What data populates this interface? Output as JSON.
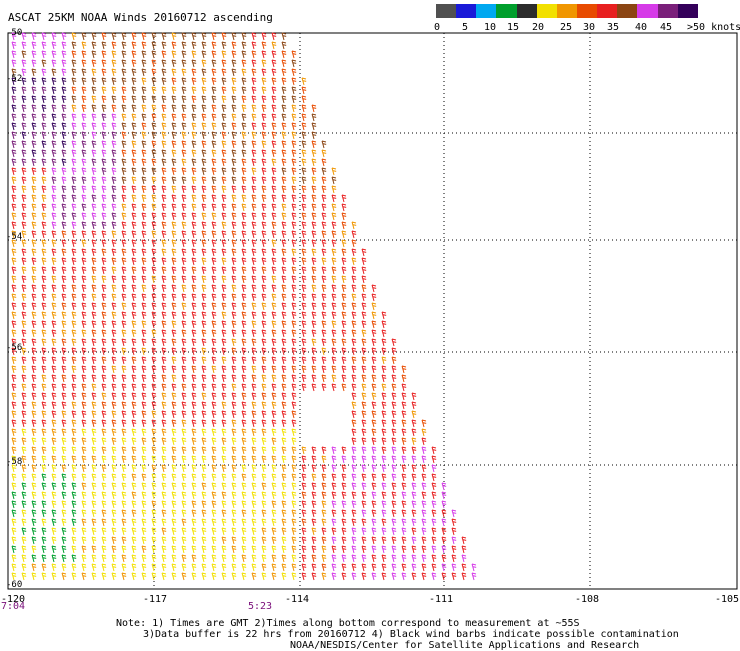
{
  "header": {
    "title": "ASCAT 25KM NOAA Winds 20160712 ascending"
  },
  "legend": {
    "colors": [
      "#505050",
      "#1a1ad8",
      "#00a8f0",
      "#009f2c",
      "#2c2c2c",
      "#f2e000",
      "#f09600",
      "#e84b00",
      "#e82020",
      "#8b4513",
      "#d63be8",
      "#7a1f7a",
      "#34005a"
    ],
    "ticks": [
      "0",
      "5",
      "10",
      "15",
      "20",
      "25",
      "30",
      "35",
      "40",
      "45",
      ">50 knots"
    ]
  },
  "axes": {
    "x_ticks": [
      "-120",
      "-117",
      "-114",
      "-111",
      "-108",
      "-105"
    ],
    "y_ticks": [
      "-50",
      "-52",
      "-54",
      "-56",
      "-58",
      "-60"
    ]
  },
  "times": [
    "7:04",
    "5:23"
  ],
  "notes": [
    "Note: 1) Times are GMT 2)Times along bottom correspond to measurement at ~55S",
    "3)Data buffer is 22 hrs from 20160712 4) Black wind barbs indicate possible contamination",
    "NOAA/NESDIS/Center for Satellite Applications and Research"
  ],
  "chart_data": {
    "type": "map",
    "title": "ASCAT 25KM NOAA Winds 20160712 ascending",
    "legend": {
      "unit": "knots",
      "bins": [
        {
          "label": "0",
          "color": "#505050"
        },
        {
          "label": "5",
          "color": "#00a8f0"
        },
        {
          "label": "10",
          "color": "#009f2c"
        },
        {
          "label": "15",
          "color": "#2c2c2c"
        },
        {
          "label": "20",
          "color": "#f2e000"
        },
        {
          "label": "25",
          "color": "#f09600"
        },
        {
          "label": "30",
          "color": "#e84b00"
        },
        {
          "label": "35",
          "color": "#e82020"
        },
        {
          "label": "40",
          "color": "#8b4513"
        },
        {
          "label": "45",
          "color": "#d63be8"
        },
        {
          "label": ">50",
          "color": "#34005a"
        }
      ]
    },
    "x_range": [
      -120,
      -105
    ],
    "y_range": [
      -60,
      -50
    ],
    "x_ticks": [
      -120,
      -117,
      -114,
      -111,
      -108,
      -105
    ],
    "y_ticks": [
      -50,
      -52,
      -54,
      -56,
      -58,
      -60
    ],
    "grid": true
  }
}
